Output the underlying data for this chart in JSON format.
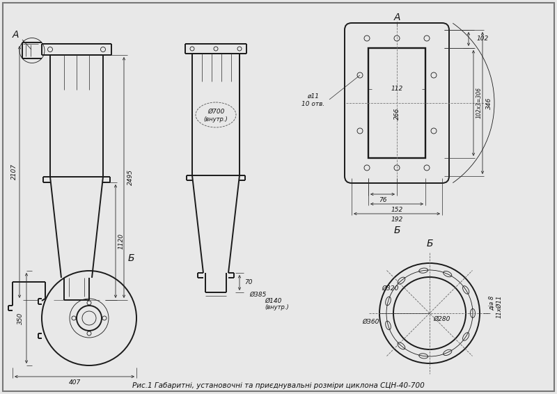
{
  "bg_color": "#e8e8e8",
  "line_color": "#1a1a1a",
  "dim_color": "#2a2a2a",
  "title": "Рис.1 Габаритні, установочні та приєднувальні розміри циклона СЦН-40-700",
  "dim_2107": "2107",
  "dim_2495": "2495",
  "dim_1120": "1120",
  "dim_700": "Ø700",
  "dim_700_sub": "(внутр.)",
  "dim_140": "Ø140",
  "dim_140_sub": "(внутр.)",
  "dim_385": "Ø385",
  "dim_70": "70",
  "dim_350": "350",
  "dim_407": "407",
  "dim_102": "102",
  "dim_306": "102х3=306",
  "dim_346": "346",
  "dim_112": "112",
  "dim_266": "266",
  "dim_76": "76",
  "dim_152": "152",
  "dim_192": "192",
  "dim_11": "ø11",
  "dim_10otv": "10 отв.",
  "dim_360": "Ø360",
  "dim_320": "Ø320",
  "dim_280": "Ø280",
  "dim_dia8": "діа 8",
  "dim_11x": "11хØ11"
}
